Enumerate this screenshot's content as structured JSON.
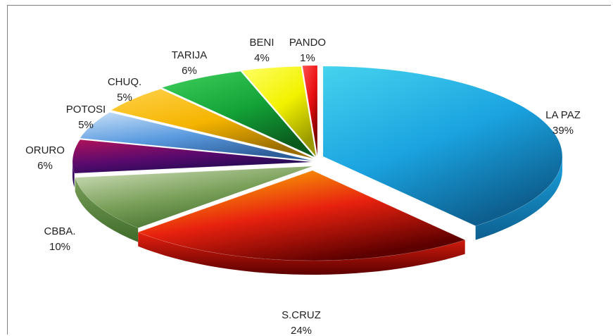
{
  "chart_data": {
    "type": "pie",
    "style": "3d-exploded",
    "legend": "none",
    "slices": [
      {
        "label": "LA PAZ",
        "value": 39,
        "display": "39%",
        "color": "#1aa3e0",
        "color_light": "#45d3ee",
        "color_dark": "#0d5f8f"
      },
      {
        "label": "S.CRUZ",
        "value": 24,
        "display": "24%",
        "color": "#e8210f",
        "color_light": "#ffd000",
        "color_dark": "#5c0000"
      },
      {
        "label": "CBBA.",
        "value": 10,
        "display": "10%",
        "color": "#7aa05a",
        "color_light": "#d7e4c3",
        "color_dark": "#3f6b2a"
      },
      {
        "label": "ORURO",
        "value": 6,
        "display": "6%",
        "color": "#5a0a6e",
        "color_light": "#b0125a",
        "color_dark": "#1a0a50"
      },
      {
        "label": "POTOSI",
        "value": 5,
        "display": "5%",
        "color": "#5b9be0",
        "color_light": "#c9e1f7",
        "color_dark": "#2e5e9a"
      },
      {
        "label": "CHUQ.",
        "value": 5,
        "display": "5%",
        "color": "#f5b400",
        "color_light": "#ffd24a",
        "color_dark": "#9a6d00"
      },
      {
        "label": "TARIJA",
        "value": 6,
        "display": "6%",
        "color": "#13a337",
        "color_light": "#3fd05e",
        "color_dark": "#0a5a1e"
      },
      {
        "label": "BENI",
        "value": 4,
        "display": "4%",
        "color": "#f2f200",
        "color_light": "#ffff66",
        "color_dark": "#9a9a00"
      },
      {
        "label": "PANDO",
        "value": 1,
        "display": "1%",
        "color": "#e81010",
        "color_light": "#ff5050",
        "color_dark": "#7a0000"
      }
    ]
  }
}
